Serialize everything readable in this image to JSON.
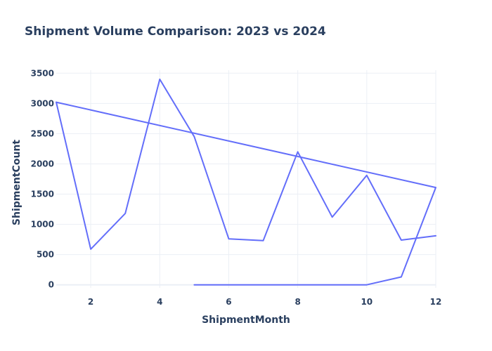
{
  "chart_data": {
    "type": "line",
    "title": "Shipment Volume Comparison: 2023 vs 2024",
    "xlabel": "ShipmentMonth",
    "ylabel": "ShipmentCount",
    "xlim": [
      1,
      12
    ],
    "ylim": [
      -50,
      3550
    ],
    "x_ticks": [
      2,
      4,
      6,
      8,
      10,
      12
    ],
    "y_ticks": [
      0,
      500,
      1000,
      1500,
      2000,
      2500,
      3000,
      3500
    ],
    "grid": true,
    "legend": "none",
    "line_color": "#636efa",
    "series": [
      {
        "x": [
          1,
          2,
          3,
          4,
          5,
          6,
          7,
          8,
          9,
          10,
          11,
          12
        ],
        "y": [
          3020,
          590,
          1180,
          3400,
          2450,
          760,
          730,
          2200,
          1120,
          1810,
          740,
          810
        ]
      },
      {
        "x": [
          5,
          6,
          7,
          8,
          9,
          10,
          11,
          12,
          1,
          12
        ],
        "y": [
          0,
          0,
          0,
          0,
          0,
          0,
          130,
          1610,
          3020,
          1610
        ]
      }
    ]
  }
}
